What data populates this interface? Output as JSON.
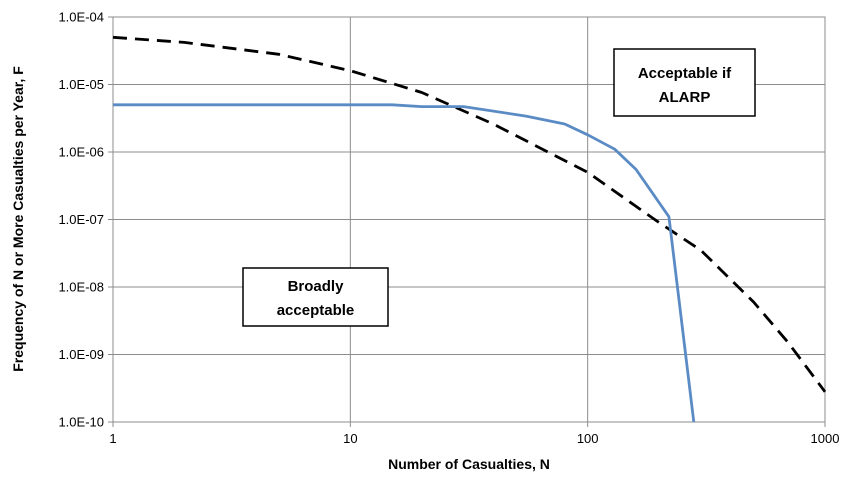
{
  "chart_data": {
    "type": "line",
    "title": "",
    "xlabel": "Number of Casualties,  N",
    "ylabel": "Frequency of N or More Casualties per Year, F",
    "x_scale": "log",
    "y_scale": "log",
    "xlim": [
      1,
      1000
    ],
    "ylim": [
      1e-10,
      0.0001
    ],
    "grid": true,
    "x_ticks": [
      {
        "value": 1,
        "label": "1"
      },
      {
        "value": 10,
        "label": "10"
      },
      {
        "value": 100,
        "label": "100"
      },
      {
        "value": 1000,
        "label": "1000"
      }
    ],
    "y_ticks": [
      {
        "value": 0.0001,
        "label": "1.0E-04"
      },
      {
        "value": 1e-05,
        "label": "1.0E-05"
      },
      {
        "value": 1e-06,
        "label": "1.0E-06"
      },
      {
        "value": 1e-07,
        "label": "1.0E-07"
      },
      {
        "value": 1e-08,
        "label": "1.0E-08"
      },
      {
        "value": 1e-09,
        "label": "1.0E-09"
      },
      {
        "value": 1e-10,
        "label": "1.0E-10"
      }
    ],
    "series": [
      {
        "style": "dashed",
        "color": "#000000",
        "points": [
          [
            1,
            5e-05
          ],
          [
            2,
            4.2e-05
          ],
          [
            5,
            2.8e-05
          ],
          [
            10,
            1.6e-05
          ],
          [
            20,
            7.6e-06
          ],
          [
            40,
            2.6e-06
          ],
          [
            100,
            5e-07
          ],
          [
            200,
            9e-08
          ],
          [
            300,
            3.5e-08
          ],
          [
            500,
            6e-09
          ],
          [
            700,
            1.5e-09
          ],
          [
            1000,
            2.8e-10
          ]
        ]
      },
      {
        "style": "solid",
        "color": "#5B8BC5",
        "points": [
          [
            1,
            5e-06
          ],
          [
            10,
            5e-06
          ],
          [
            15,
            5e-06
          ],
          [
            20,
            4.7e-06
          ],
          [
            30,
            4.7e-06
          ],
          [
            55,
            3.4e-06
          ],
          [
            80,
            2.6e-06
          ],
          [
            100,
            1.8e-06
          ],
          [
            130,
            1.1e-06
          ],
          [
            160,
            5.5e-07
          ],
          [
            220,
            1.1e-07
          ],
          [
            280,
            1e-10
          ]
        ]
      }
    ],
    "annotations": [
      {
        "lines": [
          "Acceptable if",
          "ALARP"
        ]
      },
      {
        "lines": [
          "Broadly",
          "acceptable"
        ]
      }
    ]
  }
}
